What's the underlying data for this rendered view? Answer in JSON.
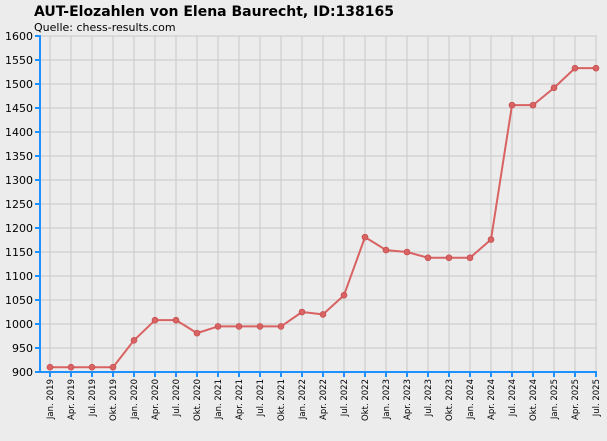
{
  "colors": {
    "background": "#ececec",
    "grid": "#c9c9c9",
    "axis": "#1e90ff",
    "line": "#d96262",
    "marker": "#d96262"
  },
  "chart_data": {
    "type": "line",
    "title": "AUT-Elozahlen von Elena Baurecht, ID:138165",
    "subtitle": "Quelle: chess-results.com",
    "xlabel": "",
    "ylabel": "",
    "ylim": [
      900,
      1600
    ],
    "yticks": [
      900,
      950,
      1000,
      1050,
      1100,
      1150,
      1200,
      1250,
      1300,
      1350,
      1400,
      1450,
      1500,
      1550,
      1600
    ],
    "grid": true,
    "categories": [
      "Jan. 2019",
      "Apr. 2019",
      "Jul. 2019",
      "Okt. 2019",
      "Jan. 2020",
      "Apr. 2020",
      "Jul. 2020",
      "Okt. 2020",
      "Jan. 2021",
      "Apr. 2021",
      "Jul. 2021",
      "Okt. 2021",
      "Jan. 2022",
      "Apr. 2022",
      "Jul. 2022",
      "Okt. 2022",
      "Jan. 2023",
      "Apr. 2023",
      "Jul. 2023",
      "Okt. 2023",
      "Jan. 2024",
      "Apr. 2024",
      "Jul. 2024",
      "Okt. 2024",
      "Jan. 2025",
      "Apr. 2025",
      "Jul. 2025"
    ],
    "series": [
      {
        "values": [
          910,
          910,
          910,
          910,
          966,
          1008,
          1008,
          981,
          995,
          995,
          995,
          995,
          1025,
          1020,
          1060,
          1181,
          1154,
          1150,
          1138,
          1138,
          1138,
          1176,
          1456,
          1456,
          1492,
          1533,
          1533
        ]
      }
    ]
  }
}
